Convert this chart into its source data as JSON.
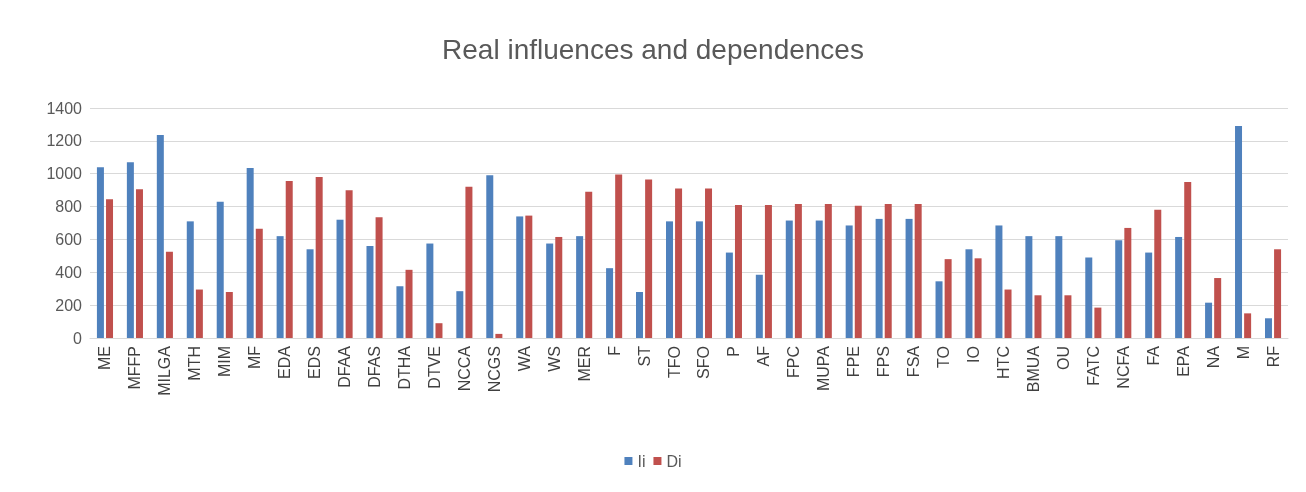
{
  "chart_data": {
    "type": "bar",
    "title": "Real influences and dependences",
    "categories": [
      "ME",
      "MFFP",
      "MILGA",
      "MTH",
      "MIM",
      "MF",
      "EDA",
      "EDS",
      "DFAA",
      "DFAS",
      "DTHA",
      "DTVE",
      "NCCA",
      "NCGS",
      "WA",
      "WS",
      "MER",
      "F",
      "ST",
      "TFO",
      "SFO",
      "P",
      "AF",
      "FPC",
      "MUPA",
      "FPE",
      "FPS",
      "FSA",
      "TO",
      "IO",
      "HTC",
      "BMUA",
      "OU",
      "FATC",
      "NCFA",
      "FA",
      "EPA",
      "NA",
      "M",
      "RF"
    ],
    "series": [
      {
        "name": "Ii",
        "color": "#4f81bd",
        "values": [
          1040,
          1070,
          1235,
          710,
          830,
          1035,
          620,
          540,
          720,
          560,
          315,
          575,
          285,
          990,
          740,
          575,
          620,
          425,
          280,
          710,
          710,
          520,
          385,
          715,
          715,
          685,
          725,
          725,
          345,
          540,
          685,
          620,
          620,
          490,
          595,
          520,
          615,
          215,
          1290,
          120
        ]
      },
      {
        "name": "Di",
        "color": "#c0504d",
        "values": [
          845,
          905,
          525,
          295,
          280,
          665,
          955,
          980,
          900,
          735,
          415,
          90,
          920,
          25,
          745,
          615,
          890,
          995,
          965,
          910,
          910,
          810,
          810,
          815,
          815,
          805,
          815,
          815,
          480,
          485,
          295,
          260,
          260,
          185,
          670,
          780,
          950,
          365,
          150,
          540
        ]
      }
    ],
    "ylim": [
      0,
      1400
    ],
    "yticks": [
      0,
      200,
      400,
      600,
      800,
      1000,
      1200,
      1400
    ],
    "grid": "y",
    "legend": "bottom"
  }
}
